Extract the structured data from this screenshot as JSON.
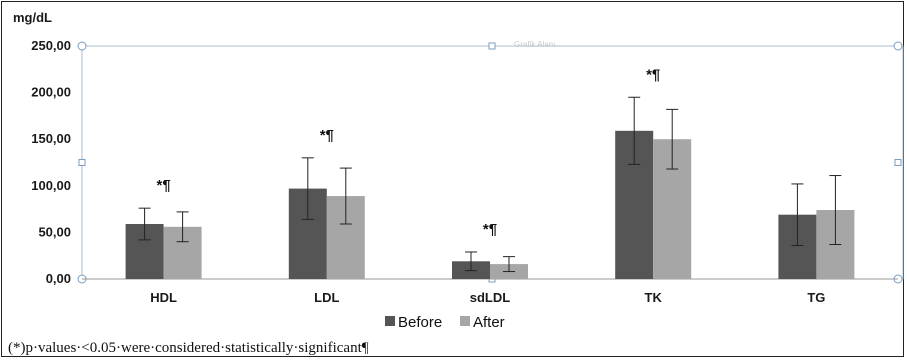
{
  "chart_data": {
    "type": "bar",
    "unit_label": "mg/dL",
    "categories": [
      "HDL",
      "LDL",
      "sdLDL",
      "TK",
      "TG"
    ],
    "series": [
      {
        "name": "Before",
        "color": "#555555",
        "values": [
          59,
          97,
          19,
          159,
          69
        ],
        "error": [
          17,
          33,
          10,
          36,
          33
        ]
      },
      {
        "name": "After",
        "color": "#a6a6a6",
        "values": [
          56,
          89,
          16,
          150,
          74
        ],
        "error": [
          16,
          30,
          8,
          32,
          37
        ]
      }
    ],
    "significance_marks": [
      "*¶",
      "*¶",
      "*¶",
      "*¶",
      ""
    ],
    "y_ticks": [
      "0,00",
      "50,00",
      "100,00",
      "150,00",
      "200,00",
      "250,00"
    ],
    "ylim": [
      0,
      250
    ],
    "grid": false,
    "legend_position": "bottom-center",
    "footnote": "(*)p·values·<0.05·were·considered·statistically·significant¶",
    "ghost_label": "Grafik Alanı"
  }
}
